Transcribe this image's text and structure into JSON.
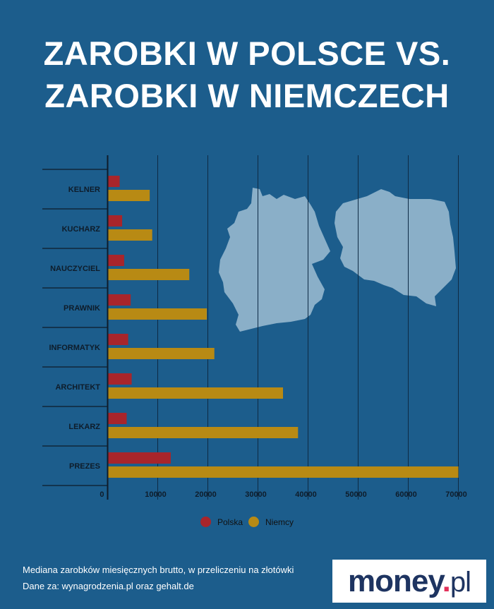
{
  "title_lines": [
    "ZAROBKI W POLSCE VS.",
    "ZAROBKI W NIEMCZECH"
  ],
  "chart_data": {
    "type": "bar",
    "orientation": "horizontal",
    "title": "ZAROBKI W POLSCE VS. ZAROBKI W NIEMCZECH",
    "categories": [
      "KELNER",
      "KUCHARZ",
      "NAUCZYCIEL",
      "PRAWNIK",
      "INFORMATYK",
      "ARCHITEKT",
      "LEKARZ",
      "PREZES"
    ],
    "series": [
      {
        "name": "Polska",
        "color": "#a8252b",
        "values": [
          2400,
          2900,
          3300,
          4600,
          4100,
          4800,
          3800,
          12600
        ]
      },
      {
        "name": "Niemcy",
        "color": "#b88a14",
        "values": [
          8400,
          8900,
          16300,
          19800,
          21300,
          35000,
          38000,
          70000
        ]
      }
    ],
    "xlim": [
      0,
      70000
    ],
    "xticks": [
      "0",
      "10000",
      "20000",
      "30000",
      "40000",
      "50000",
      "60000",
      "70000"
    ],
    "grid": true,
    "legend": "bottom-center"
  },
  "legend": {
    "polska": "Polska",
    "niemcy": "Niemcy"
  },
  "notes": {
    "line1": "Mediana zarobków miesięcznych brutto, w przeliczeniu na złotówki",
    "line2": "Dane za: wynagrodzenia.pl oraz gehalt.de"
  },
  "logo": {
    "text": "money.pl",
    "accent": "#e2315a"
  }
}
